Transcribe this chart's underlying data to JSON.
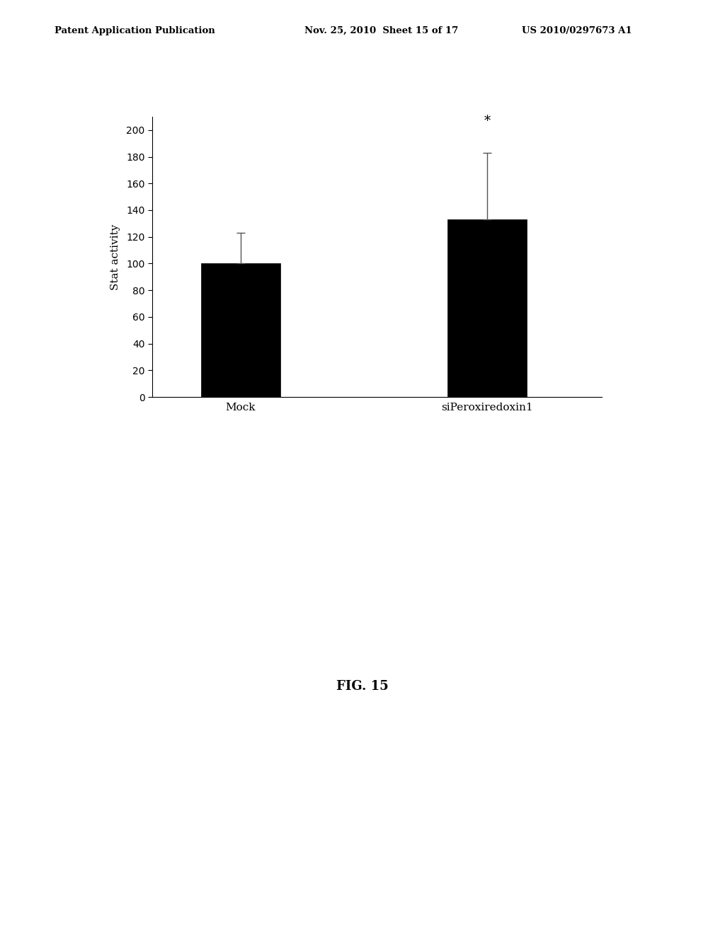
{
  "categories": [
    "Mock",
    "siPeroxiredoxin1"
  ],
  "values": [
    100,
    133
  ],
  "errors": [
    23,
    50
  ],
  "bar_color": "#000000",
  "bar_width": 0.45,
  "ylabel": "Stat activity",
  "ylim": [
    0,
    210
  ],
  "yticks": [
    0,
    20,
    40,
    60,
    80,
    100,
    120,
    140,
    160,
    180,
    200
  ],
  "asterisk_label": "*",
  "asterisk_x_idx": 1,
  "asterisk_y": 202,
  "fig_caption": "FIG. 15",
  "header_left": "Patent Application Publication",
  "header_mid": "Nov. 25, 2010  Sheet 15 of 17",
  "header_right": "US 2010/0297673 A1",
  "background_color": "#ffffff",
  "bar_positions": [
    0.5,
    1.9
  ],
  "xlim": [
    0.0,
    2.55
  ]
}
